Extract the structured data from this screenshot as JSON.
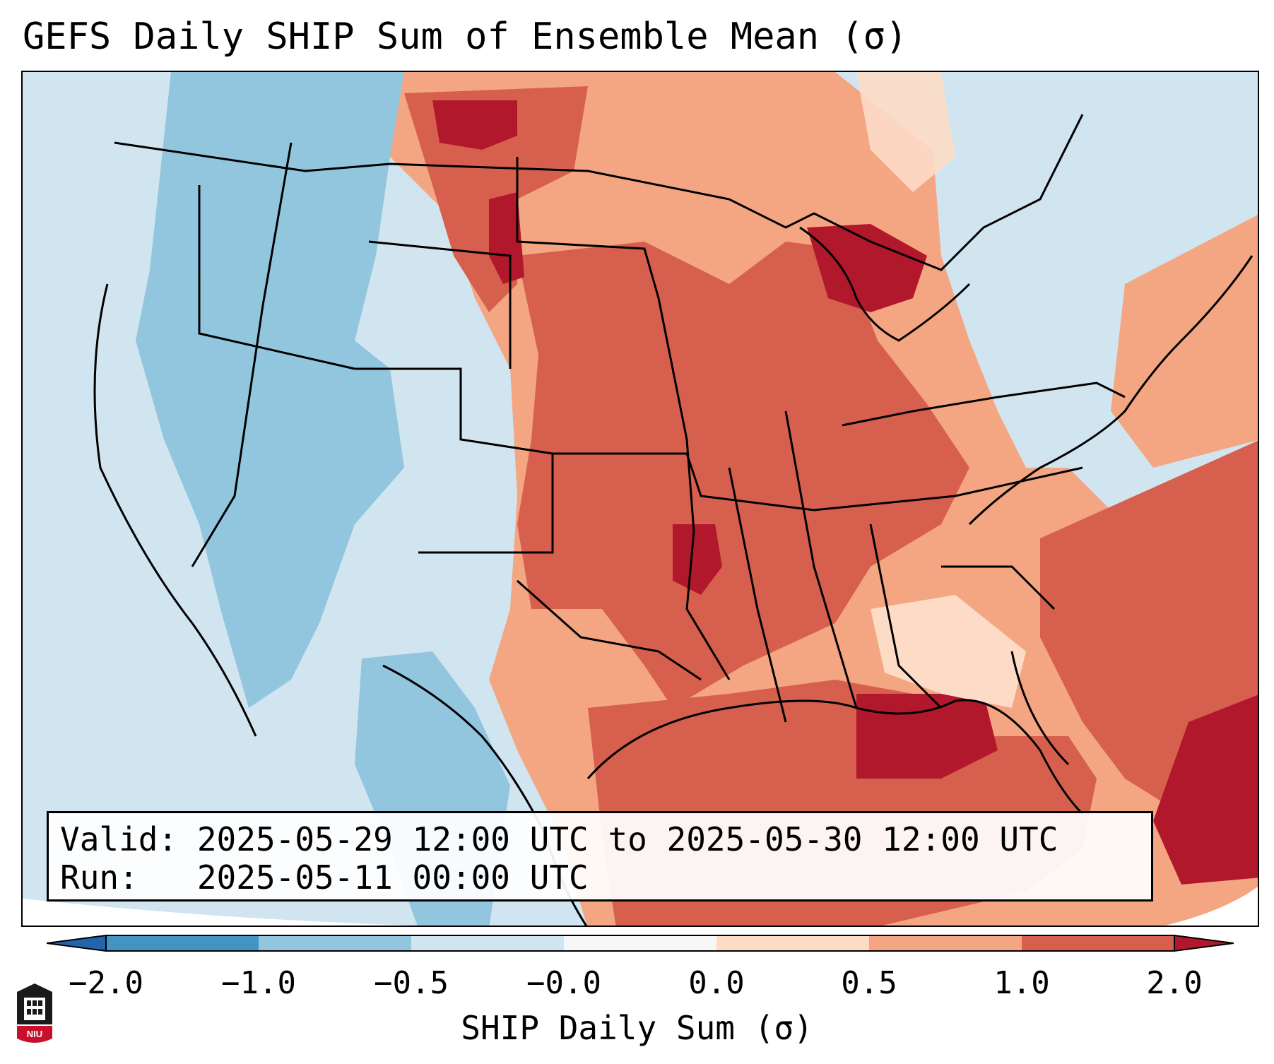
{
  "title": "GEFS Daily SHIP Sum of Ensemble Mean (σ)",
  "info": {
    "valid_line": "Valid: 2025-05-29 12:00 UTC to 2025-05-30 12:00 UTC",
    "run_line": "Run:   2025-05-11 00:00 UTC"
  },
  "colorbar": {
    "label": "SHIP Daily Sum (σ)",
    "ticks": [
      "−2.0",
      "−1.0",
      "−0.5",
      "−0.0",
      "0.0",
      "0.5",
      "1.0",
      "2.0"
    ],
    "colors": [
      "#2166ac",
      "#4393c3",
      "#92c5de",
      "#d1e5f0",
      "#f7f7f7",
      "#fddbc7",
      "#f4a582",
      "#d6604d",
      "#b2182b"
    ]
  },
  "map": {
    "projection": "Lambert Conformal (CONUS)",
    "background_color": "#d7e7f1",
    "boundaries": "state and coastline outlines in black"
  },
  "logo": {
    "icon": "niu-university-seal-icon",
    "text": "NIU"
  }
}
